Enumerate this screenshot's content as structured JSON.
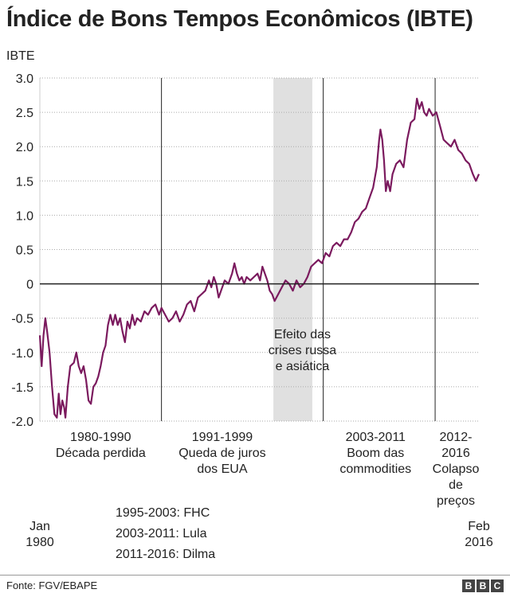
{
  "title": "Índice de Bons Tempos Econômicos (IBTE)",
  "chart_data": {
    "type": "line",
    "title": "Índice de Bons Tempos Econômicos (IBTE)",
    "ylabel": "IBTE",
    "xlabel": "",
    "ylim": [
      -2.0,
      3.0
    ],
    "yticks": [
      3.0,
      2.5,
      2.0,
      1.5,
      1.0,
      0.5,
      0,
      -0.5,
      -1.0,
      -1.5,
      -2.0
    ],
    "ytick_labels": [
      "3.0",
      "2.5",
      "2.0",
      "1.5",
      "1.0",
      "0.5",
      "0",
      "-0.5",
      "-1.0",
      "-1.5",
      "-2.0"
    ],
    "xlim": [
      1980.0,
      2016.1
    ],
    "x_start_label": [
      "Jan",
      "1980"
    ],
    "x_end_label": [
      "Feb",
      "2016"
    ],
    "zero_line": true,
    "period_dividers": [
      1990.0,
      2003.3,
      2012.5
    ],
    "shaded_band": {
      "start": 1999.2,
      "end": 2002.4,
      "label": [
        "Efeito das",
        "crises russa",
        "e asiática"
      ]
    },
    "periods": [
      {
        "center": 1985.0,
        "label": [
          "1980-1990",
          "Década perdida"
        ]
      },
      {
        "center": 1995.0,
        "label": [
          "1991-1999",
          "Queda de juros",
          "dos EUA"
        ]
      },
      {
        "center": 2007.6,
        "label": [
          "2003-2011",
          "Boom das",
          "commodities"
        ]
      },
      {
        "center": 2014.2,
        "label": [
          "2012-",
          "2016",
          "Colapso",
          "de",
          "preços"
        ]
      }
    ],
    "series": [
      {
        "name": "IBTE",
        "color": "#7b1a5e",
        "points": [
          [
            1980.0,
            -0.75
          ],
          [
            1980.15,
            -1.2
          ],
          [
            1980.3,
            -0.75
          ],
          [
            1980.45,
            -0.5
          ],
          [
            1980.6,
            -0.7
          ],
          [
            1980.8,
            -1.0
          ],
          [
            1981.0,
            -1.5
          ],
          [
            1981.2,
            -1.9
          ],
          [
            1981.4,
            -1.95
          ],
          [
            1981.55,
            -1.6
          ],
          [
            1981.7,
            -1.9
          ],
          [
            1981.85,
            -1.7
          ],
          [
            1982.0,
            -1.8
          ],
          [
            1982.1,
            -1.95
          ],
          [
            1982.3,
            -1.5
          ],
          [
            1982.5,
            -1.2
          ],
          [
            1982.8,
            -1.15
          ],
          [
            1983.0,
            -1.0
          ],
          [
            1983.2,
            -1.2
          ],
          [
            1983.4,
            -1.3
          ],
          [
            1983.6,
            -1.2
          ],
          [
            1983.8,
            -1.4
          ],
          [
            1984.0,
            -1.7
          ],
          [
            1984.2,
            -1.75
          ],
          [
            1984.4,
            -1.5
          ],
          [
            1984.6,
            -1.45
          ],
          [
            1984.8,
            -1.35
          ],
          [
            1985.0,
            -1.2
          ],
          [
            1985.2,
            -1.0
          ],
          [
            1985.4,
            -0.9
          ],
          [
            1985.6,
            -0.6
          ],
          [
            1985.8,
            -0.45
          ],
          [
            1986.0,
            -0.6
          ],
          [
            1986.2,
            -0.45
          ],
          [
            1986.4,
            -0.6
          ],
          [
            1986.6,
            -0.5
          ],
          [
            1986.8,
            -0.7
          ],
          [
            1987.0,
            -0.85
          ],
          [
            1987.2,
            -0.55
          ],
          [
            1987.4,
            -0.65
          ],
          [
            1987.6,
            -0.45
          ],
          [
            1987.8,
            -0.6
          ],
          [
            1988.0,
            -0.5
          ],
          [
            1988.3,
            -0.55
          ],
          [
            1988.6,
            -0.4
          ],
          [
            1988.9,
            -0.45
          ],
          [
            1989.2,
            -0.35
          ],
          [
            1989.5,
            -0.3
          ],
          [
            1989.8,
            -0.45
          ],
          [
            1990.0,
            -0.35
          ],
          [
            1990.3,
            -0.45
          ],
          [
            1990.6,
            -0.55
          ],
          [
            1990.9,
            -0.5
          ],
          [
            1991.2,
            -0.4
          ],
          [
            1991.5,
            -0.55
          ],
          [
            1991.8,
            -0.45
          ],
          [
            1992.1,
            -0.3
          ],
          [
            1992.4,
            -0.25
          ],
          [
            1992.7,
            -0.4
          ],
          [
            1993.0,
            -0.2
          ],
          [
            1993.3,
            -0.15
          ],
          [
            1993.6,
            -0.1
          ],
          [
            1993.9,
            0.05
          ],
          [
            1994.1,
            -0.05
          ],
          [
            1994.3,
            0.1
          ],
          [
            1994.5,
            0.0
          ],
          [
            1994.7,
            -0.2
          ],
          [
            1994.9,
            -0.1
          ],
          [
            1995.2,
            0.05
          ],
          [
            1995.5,
            0.0
          ],
          [
            1995.8,
            0.15
          ],
          [
            1996.0,
            0.3
          ],
          [
            1996.2,
            0.15
          ],
          [
            1996.4,
            0.05
          ],
          [
            1996.6,
            0.1
          ],
          [
            1996.8,
            0.0
          ],
          [
            1997.0,
            0.1
          ],
          [
            1997.3,
            0.05
          ],
          [
            1997.6,
            0.1
          ],
          [
            1997.9,
            0.15
          ],
          [
            1998.1,
            0.05
          ],
          [
            1998.3,
            0.25
          ],
          [
            1998.5,
            0.15
          ],
          [
            1998.7,
            0.05
          ],
          [
            1998.9,
            -0.1
          ],
          [
            1999.1,
            -0.15
          ],
          [
            1999.3,
            -0.25
          ],
          [
            1999.6,
            -0.15
          ],
          [
            1999.9,
            -0.05
          ],
          [
            2000.2,
            0.05
          ],
          [
            2000.5,
            0.0
          ],
          [
            2000.8,
            -0.1
          ],
          [
            2001.1,
            0.05
          ],
          [
            2001.4,
            -0.05
          ],
          [
            2001.7,
            0.0
          ],
          [
            2002.0,
            0.1
          ],
          [
            2002.3,
            0.25
          ],
          [
            2002.6,
            0.3
          ],
          [
            2002.9,
            0.35
          ],
          [
            2003.2,
            0.3
          ],
          [
            2003.5,
            0.45
          ],
          [
            2003.8,
            0.4
          ],
          [
            2004.1,
            0.55
          ],
          [
            2004.4,
            0.6
          ],
          [
            2004.7,
            0.55
          ],
          [
            2005.0,
            0.65
          ],
          [
            2005.3,
            0.65
          ],
          [
            2005.6,
            0.75
          ],
          [
            2005.9,
            0.9
          ],
          [
            2006.2,
            0.95
          ],
          [
            2006.5,
            1.05
          ],
          [
            2006.8,
            1.1
          ],
          [
            2007.1,
            1.25
          ],
          [
            2007.4,
            1.4
          ],
          [
            2007.7,
            1.7
          ],
          [
            2007.9,
            2.1
          ],
          [
            2008.0,
            2.25
          ],
          [
            2008.15,
            2.1
          ],
          [
            2008.3,
            1.8
          ],
          [
            2008.45,
            1.35
          ],
          [
            2008.6,
            1.5
          ],
          [
            2008.8,
            1.35
          ],
          [
            2009.0,
            1.6
          ],
          [
            2009.3,
            1.75
          ],
          [
            2009.6,
            1.8
          ],
          [
            2009.9,
            1.7
          ],
          [
            2010.2,
            2.1
          ],
          [
            2010.5,
            2.35
          ],
          [
            2010.8,
            2.4
          ],
          [
            2011.0,
            2.7
          ],
          [
            2011.2,
            2.55
          ],
          [
            2011.4,
            2.65
          ],
          [
            2011.6,
            2.5
          ],
          [
            2011.8,
            2.45
          ],
          [
            2012.0,
            2.55
          ],
          [
            2012.3,
            2.45
          ],
          [
            2012.6,
            2.5
          ],
          [
            2012.9,
            2.3
          ],
          [
            2013.2,
            2.1
          ],
          [
            2013.5,
            2.05
          ],
          [
            2013.8,
            2.0
          ],
          [
            2014.1,
            2.1
          ],
          [
            2014.4,
            1.95
          ],
          [
            2014.7,
            1.9
          ],
          [
            2015.0,
            1.8
          ],
          [
            2015.3,
            1.75
          ],
          [
            2015.6,
            1.6
          ],
          [
            2015.85,
            1.5
          ],
          [
            2016.1,
            1.6
          ]
        ]
      }
    ]
  },
  "legend": [
    "1995-2003: FHC",
    "2003-2011: Lula",
    "2011-2016: Dilma"
  ],
  "source": "Fonte: FGV/EBAPE",
  "brand": [
    "B",
    "B",
    "C"
  ],
  "colors": {
    "line": "#7b1a5e",
    "shade": "#e0e0e0",
    "axis": "#222222",
    "grid": "#aaaaaa"
  }
}
